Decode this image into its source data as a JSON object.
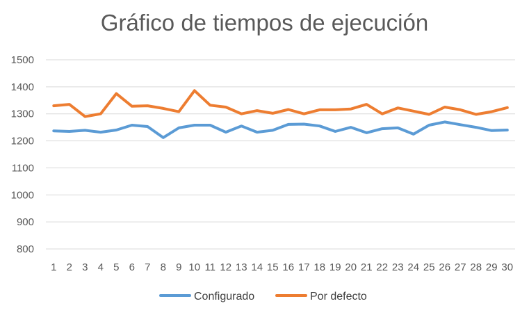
{
  "chart_data": {
    "type": "line",
    "title": "Gráfico de tiempos de ejecución",
    "xlabel": "",
    "ylabel": "",
    "ylim": [
      800,
      1500
    ],
    "y_ticks": [
      800,
      900,
      1000,
      1100,
      1200,
      1300,
      1400,
      1500
    ],
    "categories": [
      "1",
      "2",
      "3",
      "4",
      "5",
      "6",
      "7",
      "8",
      "9",
      "10",
      "11",
      "12",
      "13",
      "14",
      "15",
      "16",
      "17",
      "18",
      "19",
      "20",
      "21",
      "22",
      "23",
      "24",
      "25",
      "26",
      "27",
      "28",
      "29",
      "30"
    ],
    "grid": true,
    "legend_position": "bottom",
    "series": [
      {
        "name": "Configurado",
        "color": "#5B9BD5",
        "values": [
          1237,
          1235,
          1239,
          1232,
          1240,
          1258,
          1253,
          1212,
          1248,
          1258,
          1258,
          1232,
          1255,
          1232,
          1239,
          1261,
          1262,
          1255,
          1235,
          1250,
          1230,
          1245,
          1248,
          1225,
          1258,
          1270,
          1260,
          1250,
          1238,
          1240
        ]
      },
      {
        "name": "Por defecto",
        "color": "#ED7D31",
        "values": [
          1330,
          1335,
          1290,
          1300,
          1375,
          1328,
          1330,
          1320,
          1308,
          1386,
          1332,
          1325,
          1300,
          1312,
          1302,
          1316,
          1300,
          1315,
          1315,
          1318,
          1335,
          1300,
          1322,
          1310,
          1298,
          1325,
          1315,
          1298,
          1308,
          1323
        ]
      }
    ]
  }
}
